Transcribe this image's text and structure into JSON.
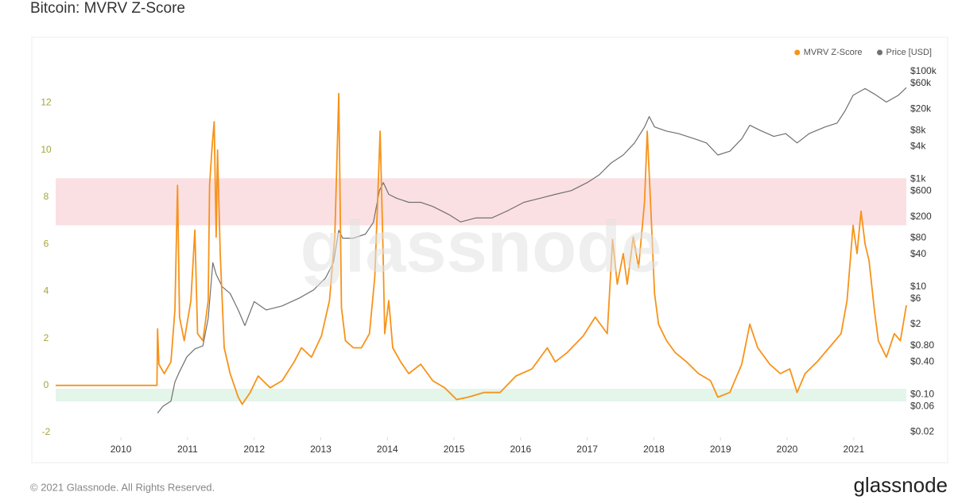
{
  "chart_data": {
    "type": "line",
    "title": "Bitcoin: MVRV Z-Score",
    "watermark": "glassnode",
    "xlim": [
      2009.02,
      2021.79
    ],
    "xticks": [
      2010,
      2011,
      2012,
      2013,
      2014,
      2015,
      2016,
      2017,
      2018,
      2019,
      2020,
      2021
    ],
    "ylim": [
      -2.2,
      13.5
    ],
    "yticks": [
      -2,
      0,
      2,
      4,
      6,
      8,
      10,
      12
    ],
    "y2lim": [
      0.016,
      118000
    ],
    "y2scale": "log",
    "y2ticks": [
      {
        "value": 0.02,
        "label": "$0.02"
      },
      {
        "value": 0.06,
        "label": "$0.06"
      },
      {
        "value": 0.1,
        "label": "$0.10"
      },
      {
        "value": 0.4,
        "label": "$0.40"
      },
      {
        "value": 0.8,
        "label": "$0.80"
      },
      {
        "value": 2,
        "label": "$2"
      },
      {
        "value": 6,
        "label": "$6"
      },
      {
        "value": 10,
        "label": "$10"
      },
      {
        "value": 40,
        "label": "$40"
      },
      {
        "value": 80,
        "label": "$80"
      },
      {
        "value": 200,
        "label": "$200"
      },
      {
        "value": 600,
        "label": "$600"
      },
      {
        "value": 1000,
        "label": "$1k"
      },
      {
        "value": 4000,
        "label": "$4k"
      },
      {
        "value": 8000,
        "label": "$8k"
      },
      {
        "value": 20000,
        "label": "$20k"
      },
      {
        "value": 60000,
        "label": "$60k"
      },
      {
        "value": 100000,
        "label": "$100k"
      }
    ],
    "legend": "top-right",
    "zones": [
      {
        "range": [
          6.8,
          8.8
        ],
        "color": "#fbe0e3"
      },
      {
        "range": [
          -0.68,
          -0.14
        ],
        "color": "#e4f5ea"
      }
    ],
    "series": [
      {
        "name": "MVRV Z-Score",
        "color": "#f7931a",
        "x": [
          2009.02,
          2010.54,
          2010.55,
          2010.57,
          2010.65,
          2010.75,
          2010.81,
          2010.85,
          2010.88,
          2010.95,
          2011.05,
          2011.11,
          2011.15,
          2011.23,
          2011.31,
          2011.33,
          2011.37,
          2011.4,
          2011.43,
          2011.45,
          2011.49,
          2011.55,
          2011.64,
          2011.76,
          2011.82,
          2011.94,
          2012.06,
          2012.24,
          2012.42,
          2012.6,
          2012.71,
          2012.86,
          2013.01,
          2013.13,
          2013.21,
          2013.27,
          2013.31,
          2013.37,
          2013.49,
          2013.61,
          2013.73,
          2013.81,
          2013.86,
          2013.89,
          2013.93,
          2013.96,
          2014.02,
          2014.08,
          2014.2,
          2014.32,
          2014.5,
          2014.68,
          2014.86,
          2015.04,
          2015.21,
          2015.45,
          2015.69,
          2015.93,
          2016.17,
          2016.4,
          2016.52,
          2016.7,
          2016.94,
          2017.12,
          2017.3,
          2017.38,
          2017.45,
          2017.54,
          2017.6,
          2017.69,
          2017.77,
          2017.86,
          2017.9,
          2017.95,
          2018.01,
          2018.07,
          2018.19,
          2018.32,
          2018.49,
          2018.67,
          2018.85,
          2018.96,
          2019.14,
          2019.32,
          2019.44,
          2019.56,
          2019.74,
          2019.9,
          2020.04,
          2020.15,
          2020.27,
          2020.45,
          2020.63,
          2020.81,
          2020.9,
          2020.99,
          2021.05,
          2021.11,
          2021.17,
          2021.23,
          2021.31,
          2021.37,
          2021.49,
          2021.61,
          2021.7,
          2021.79
        ],
        "values": [
          0,
          0,
          2.4,
          0.9,
          0.5,
          1.0,
          3.2,
          8.5,
          2.9,
          1.9,
          3.6,
          6.6,
          2.2,
          1.9,
          3.6,
          8.5,
          10.2,
          11.2,
          6.3,
          10,
          5.6,
          1.6,
          0.5,
          -0.5,
          -0.8,
          -0.3,
          0.4,
          -0.1,
          0.2,
          1.0,
          1.6,
          1.2,
          2.1,
          3.6,
          6.3,
          12.4,
          3.3,
          1.9,
          1.6,
          1.6,
          2.2,
          4.6,
          8.3,
          10.8,
          6.3,
          2.2,
          3.6,
          1.6,
          1.0,
          0.5,
          0.9,
          0.2,
          -0.1,
          -0.6,
          -0.5,
          -0.3,
          -0.3,
          0.4,
          0.7,
          1.6,
          1.0,
          1.4,
          2.1,
          2.9,
          2.2,
          6.2,
          4.3,
          5.6,
          4.3,
          6.3,
          5.0,
          7.8,
          10.8,
          7.8,
          3.9,
          2.6,
          1.9,
          1.4,
          1.0,
          0.5,
          0.2,
          -0.5,
          -0.3,
          0.9,
          2.6,
          1.6,
          0.9,
          0.5,
          0.7,
          -0.3,
          0.5,
          1.0,
          1.6,
          2.2,
          3.6,
          6.8,
          5.6,
          7.4,
          6.0,
          5.3,
          3.2,
          1.9,
          1.2,
          2.2,
          1.9,
          3.4
        ]
      },
      {
        "name": "Price [USD]",
        "color": "#707070",
        "axis": "y2",
        "x": [
          2010.55,
          2010.63,
          2010.75,
          2010.81,
          2010.87,
          2010.99,
          2011.11,
          2011.23,
          2011.31,
          2011.38,
          2011.43,
          2011.52,
          2011.64,
          2011.76,
          2011.86,
          2012.0,
          2012.18,
          2012.42,
          2012.68,
          2012.89,
          2013.07,
          2013.19,
          2013.27,
          2013.33,
          2013.49,
          2013.67,
          2013.79,
          2013.88,
          2013.94,
          2014.02,
          2014.14,
          2014.32,
          2014.5,
          2014.68,
          2014.92,
          2015.1,
          2015.33,
          2015.57,
          2015.81,
          2016.05,
          2016.29,
          2016.52,
          2016.76,
          2017.0,
          2017.18,
          2017.36,
          2017.54,
          2017.71,
          2017.86,
          2017.93,
          2018.01,
          2018.19,
          2018.37,
          2018.61,
          2018.79,
          2018.96,
          2019.14,
          2019.32,
          2019.44,
          2019.62,
          2019.8,
          2019.98,
          2020.15,
          2020.33,
          2020.57,
          2020.75,
          2020.87,
          2020.99,
          2021.17,
          2021.31,
          2021.49,
          2021.67,
          2021.79
        ],
        "values": [
          0.045,
          0.06,
          0.075,
          0.17,
          0.25,
          0.5,
          0.7,
          0.8,
          2.6,
          28,
          17,
          10,
          7.5,
          3.7,
          1.9,
          5.3,
          3.7,
          4.4,
          6.2,
          8.7,
          14.5,
          28,
          112,
          80,
          80,
          95,
          157,
          610,
          860,
          520,
          440,
          370,
          370,
          310,
          220,
          160,
          190,
          190,
          260,
          370,
          440,
          520,
          610,
          860,
          1200,
          2000,
          2800,
          4700,
          9300,
          14500,
          9300,
          7800,
          7000,
          5600,
          4700,
          2800,
          3300,
          5600,
          10000,
          7800,
          6200,
          7000,
          4700,
          7000,
          9300,
          11000,
          18500,
          36000,
          48000,
          38000,
          27000,
          36000,
          50000
        ]
      }
    ]
  },
  "footer": {
    "copyright": "© 2021 Glassnode. All Rights Reserved.",
    "logo": "glassnode"
  }
}
